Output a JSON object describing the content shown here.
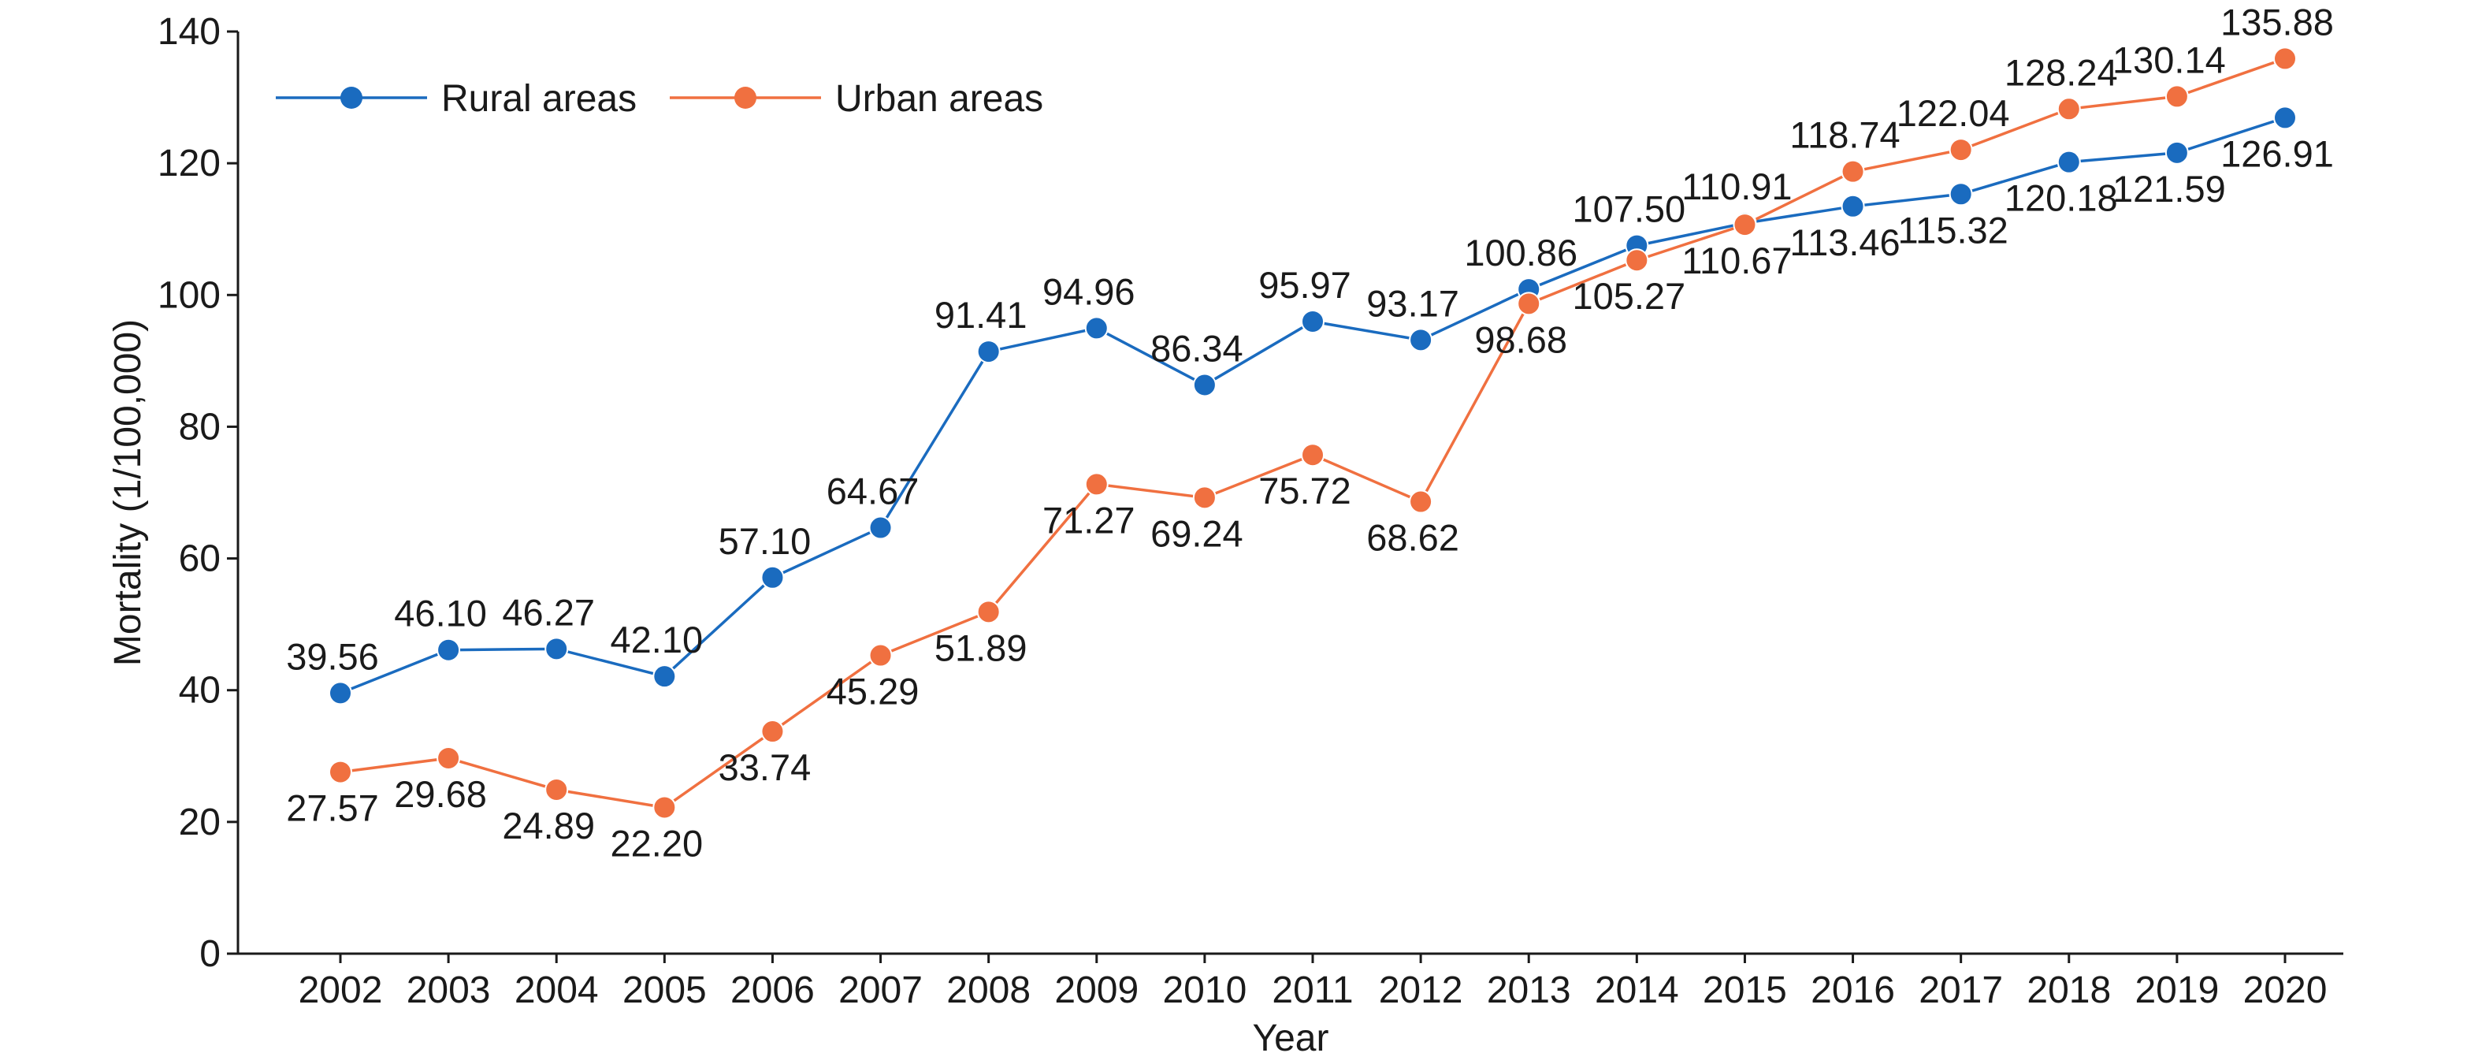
{
  "chart_data": {
    "type": "line",
    "xlabel": "Year",
    "ylabel": "Mortality (1/100,000)",
    "ylim": [
      0,
      140
    ],
    "yticks": [
      0,
      20,
      40,
      60,
      80,
      100,
      120,
      140
    ],
    "grid": false,
    "legend_position": "top-left",
    "categories": [
      "2002",
      "2003",
      "2004",
      "2005",
      "2006",
      "2007",
      "2008",
      "2009",
      "2010",
      "2011",
      "2012",
      "2013",
      "2014",
      "2015",
      "2016",
      "2017",
      "2018",
      "2019",
      "2020"
    ],
    "series": [
      {
        "name": "Rural areas",
        "color": "#1a6bbf",
        "values": [
          39.56,
          46.1,
          46.27,
          42.1,
          57.1,
          64.67,
          91.41,
          94.96,
          86.34,
          95.97,
          93.17,
          100.86,
          107.5,
          110.91,
          113.46,
          115.32,
          120.18,
          121.59,
          126.91
        ],
        "labels": [
          "39.56",
          "46.10",
          "46.27",
          "42.10",
          "57.10",
          "64.67",
          "91.41",
          "94.96",
          "86.34",
          "95.97",
          "93.17",
          "100.86",
          "107.50",
          "110.91",
          "113.46",
          "115.32",
          "120.18",
          "121.59",
          "126.91"
        ],
        "label_positions": [
          "above",
          "above",
          "above",
          "above",
          "above",
          "above",
          "above",
          "above",
          "above",
          "above",
          "above",
          "above",
          "above",
          "above",
          "below",
          "below",
          "below",
          "below",
          "below"
        ]
      },
      {
        "name": "Urban areas",
        "color": "#f07040",
        "values": [
          27.57,
          29.68,
          24.89,
          22.2,
          33.74,
          45.29,
          51.89,
          71.27,
          69.24,
          75.72,
          68.62,
          98.68,
          105.27,
          110.67,
          118.74,
          122.04,
          128.24,
          130.14,
          135.88
        ],
        "labels": [
          "27.57",
          "29.68",
          "24.89",
          "22.20",
          "33.74",
          "45.29",
          "51.89",
          "71.27",
          "69.24",
          "75.72",
          "68.62",
          "98.68",
          "105.27",
          "110.67",
          "118.74",
          "122.04",
          "128.24",
          "130.14",
          "135.88"
        ],
        "label_positions": [
          "below",
          "below",
          "below",
          "below",
          "below",
          "below",
          "below",
          "below",
          "below",
          "below",
          "below",
          "below",
          "below",
          "below",
          "above",
          "above",
          "above",
          "above",
          "above"
        ]
      }
    ]
  }
}
